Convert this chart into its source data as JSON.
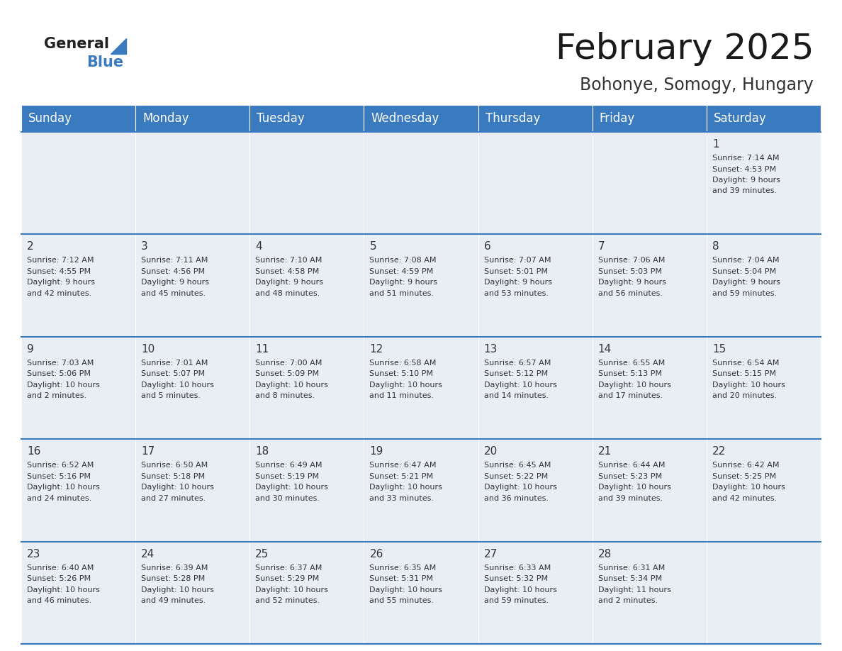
{
  "title": "February 2025",
  "subtitle": "Bohonye, Somogy, Hungary",
  "header_color": "#3a7abf",
  "header_text_color": "#ffffff",
  "cell_bg_color": "#e8eef4",
  "line_color": "#3a7abf",
  "text_color": "#333333",
  "days_of_week": [
    "Sunday",
    "Monday",
    "Tuesday",
    "Wednesday",
    "Thursday",
    "Friday",
    "Saturday"
  ],
  "weeks": [
    [
      {
        "day": "",
        "info": ""
      },
      {
        "day": "",
        "info": ""
      },
      {
        "day": "",
        "info": ""
      },
      {
        "day": "",
        "info": ""
      },
      {
        "day": "",
        "info": ""
      },
      {
        "day": "",
        "info": ""
      },
      {
        "day": "1",
        "info": "Sunrise: 7:14 AM\nSunset: 4:53 PM\nDaylight: 9 hours\nand 39 minutes."
      }
    ],
    [
      {
        "day": "2",
        "info": "Sunrise: 7:12 AM\nSunset: 4:55 PM\nDaylight: 9 hours\nand 42 minutes."
      },
      {
        "day": "3",
        "info": "Sunrise: 7:11 AM\nSunset: 4:56 PM\nDaylight: 9 hours\nand 45 minutes."
      },
      {
        "day": "4",
        "info": "Sunrise: 7:10 AM\nSunset: 4:58 PM\nDaylight: 9 hours\nand 48 minutes."
      },
      {
        "day": "5",
        "info": "Sunrise: 7:08 AM\nSunset: 4:59 PM\nDaylight: 9 hours\nand 51 minutes."
      },
      {
        "day": "6",
        "info": "Sunrise: 7:07 AM\nSunset: 5:01 PM\nDaylight: 9 hours\nand 53 minutes."
      },
      {
        "day": "7",
        "info": "Sunrise: 7:06 AM\nSunset: 5:03 PM\nDaylight: 9 hours\nand 56 minutes."
      },
      {
        "day": "8",
        "info": "Sunrise: 7:04 AM\nSunset: 5:04 PM\nDaylight: 9 hours\nand 59 minutes."
      }
    ],
    [
      {
        "day": "9",
        "info": "Sunrise: 7:03 AM\nSunset: 5:06 PM\nDaylight: 10 hours\nand 2 minutes."
      },
      {
        "day": "10",
        "info": "Sunrise: 7:01 AM\nSunset: 5:07 PM\nDaylight: 10 hours\nand 5 minutes."
      },
      {
        "day": "11",
        "info": "Sunrise: 7:00 AM\nSunset: 5:09 PM\nDaylight: 10 hours\nand 8 minutes."
      },
      {
        "day": "12",
        "info": "Sunrise: 6:58 AM\nSunset: 5:10 PM\nDaylight: 10 hours\nand 11 minutes."
      },
      {
        "day": "13",
        "info": "Sunrise: 6:57 AM\nSunset: 5:12 PM\nDaylight: 10 hours\nand 14 minutes."
      },
      {
        "day": "14",
        "info": "Sunrise: 6:55 AM\nSunset: 5:13 PM\nDaylight: 10 hours\nand 17 minutes."
      },
      {
        "day": "15",
        "info": "Sunrise: 6:54 AM\nSunset: 5:15 PM\nDaylight: 10 hours\nand 20 minutes."
      }
    ],
    [
      {
        "day": "16",
        "info": "Sunrise: 6:52 AM\nSunset: 5:16 PM\nDaylight: 10 hours\nand 24 minutes."
      },
      {
        "day": "17",
        "info": "Sunrise: 6:50 AM\nSunset: 5:18 PM\nDaylight: 10 hours\nand 27 minutes."
      },
      {
        "day": "18",
        "info": "Sunrise: 6:49 AM\nSunset: 5:19 PM\nDaylight: 10 hours\nand 30 minutes."
      },
      {
        "day": "19",
        "info": "Sunrise: 6:47 AM\nSunset: 5:21 PM\nDaylight: 10 hours\nand 33 minutes."
      },
      {
        "day": "20",
        "info": "Sunrise: 6:45 AM\nSunset: 5:22 PM\nDaylight: 10 hours\nand 36 minutes."
      },
      {
        "day": "21",
        "info": "Sunrise: 6:44 AM\nSunset: 5:23 PM\nDaylight: 10 hours\nand 39 minutes."
      },
      {
        "day": "22",
        "info": "Sunrise: 6:42 AM\nSunset: 5:25 PM\nDaylight: 10 hours\nand 42 minutes."
      }
    ],
    [
      {
        "day": "23",
        "info": "Sunrise: 6:40 AM\nSunset: 5:26 PM\nDaylight: 10 hours\nand 46 minutes."
      },
      {
        "day": "24",
        "info": "Sunrise: 6:39 AM\nSunset: 5:28 PM\nDaylight: 10 hours\nand 49 minutes."
      },
      {
        "day": "25",
        "info": "Sunrise: 6:37 AM\nSunset: 5:29 PM\nDaylight: 10 hours\nand 52 minutes."
      },
      {
        "day": "26",
        "info": "Sunrise: 6:35 AM\nSunset: 5:31 PM\nDaylight: 10 hours\nand 55 minutes."
      },
      {
        "day": "27",
        "info": "Sunrise: 6:33 AM\nSunset: 5:32 PM\nDaylight: 10 hours\nand 59 minutes."
      },
      {
        "day": "28",
        "info": "Sunrise: 6:31 AM\nSunset: 5:34 PM\nDaylight: 11 hours\nand 2 minutes."
      },
      {
        "day": "",
        "info": ""
      }
    ]
  ],
  "logo_general_color": "#222222",
  "logo_blue_color": "#3a7abf",
  "title_fontsize": 36,
  "subtitle_fontsize": 17,
  "header_fontsize": 12,
  "day_num_fontsize": 11,
  "info_fontsize": 8
}
